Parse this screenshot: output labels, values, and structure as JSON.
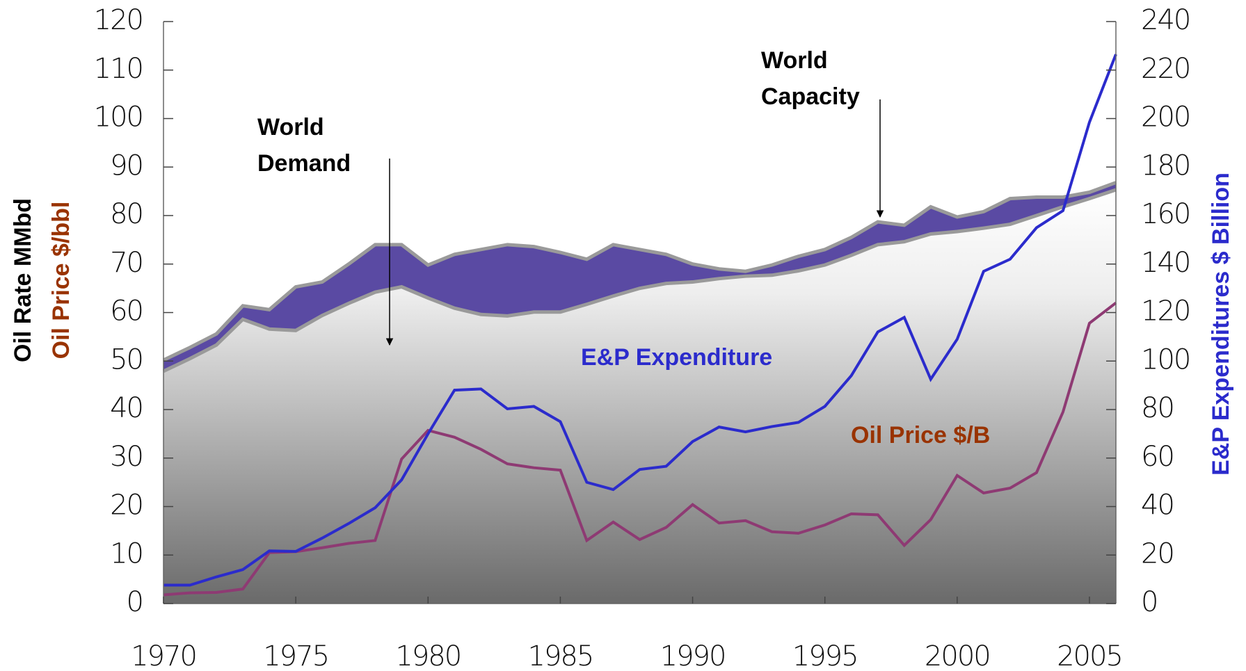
{
  "chart_data": {
    "type": "line",
    "ylabel": "Oil Rate MMbd",
    "ylabel2": "Oil Price $/bbl",
    "y2label": "E&P Expenditures $ Billion",
    "x": [
      1970,
      1971,
      1972,
      1973,
      1974,
      1975,
      1976,
      1977,
      1978,
      1979,
      1980,
      1981,
      1982,
      1983,
      1984,
      1985,
      1986,
      1987,
      1988,
      1989,
      1990,
      1991,
      1992,
      1993,
      1994,
      1995,
      1996,
      1997,
      1998,
      1999,
      2000,
      2001,
      2002,
      2003,
      2004,
      2005,
      2006
    ],
    "xlim": [
      1970,
      2006
    ],
    "xticks": [
      1970,
      1975,
      1980,
      1985,
      1990,
      1995,
      2000,
      2005
    ],
    "ylim": [
      0,
      120
    ],
    "yticks": [
      0,
      10,
      20,
      30,
      40,
      50,
      60,
      70,
      80,
      90,
      100,
      110,
      120
    ],
    "y2lim": [
      0,
      240
    ],
    "y2ticks": [
      0,
      20,
      40,
      60,
      80,
      100,
      120,
      140,
      160,
      180,
      200,
      220,
      240
    ],
    "series": [
      {
        "name": "World Capacity",
        "color": "#5a4aa3",
        "values": [
          50.2,
          52.8,
          55.6,
          61.4,
          60.6,
          65.3,
          66.3,
          70,
          74,
          74,
          69.8,
          72,
          73,
          74,
          73.6,
          72.4,
          71,
          74,
          73,
          72,
          70,
          69,
          68.5,
          69.8,
          71.6,
          73,
          75.5,
          78.7,
          78,
          81.8,
          79.7,
          80.8,
          83.5,
          83.8,
          83.8,
          84.8,
          86.8
        ]
      },
      {
        "name": "World Demand",
        "color": "#9a9a9a",
        "values": [
          47.9,
          50.5,
          53.3,
          58.6,
          56.6,
          56.3,
          59.4,
          61.9,
          64.2,
          65.3,
          63,
          60.9,
          59.6,
          59.3,
          60.1,
          60.1,
          61.7,
          63.4,
          65,
          66,
          66.3,
          67,
          67.5,
          67.7,
          68.6,
          69.8,
          71.8,
          74,
          74.6,
          76.2,
          76.7,
          77.4,
          78.2,
          80,
          81.8,
          83.5,
          85.3
        ]
      },
      {
        "name": "Oil Price $/B",
        "color": "#8e3a73",
        "values": [
          1.8,
          2.2,
          2.3,
          3,
          10.5,
          10.7,
          11.5,
          12.4,
          13,
          29.8,
          35.7,
          34.3,
          31.8,
          28.8,
          28,
          27.5,
          13,
          16.8,
          13.2,
          15.7,
          20.4,
          16.6,
          17.1,
          14.8,
          14.5,
          16.2,
          18.5,
          18.3,
          12,
          17.3,
          26.4,
          22.8,
          23.8,
          27,
          39.5,
          57.8,
          62
        ]
      },
      {
        "name": "E&P Expenditure",
        "color": "#2b2bcc",
        "axis": "y2",
        "values": [
          7.6,
          7.6,
          11,
          14,
          21.7,
          21.5,
          27,
          33,
          39.5,
          51,
          70,
          88,
          88.5,
          80.3,
          81.3,
          75,
          50,
          47,
          55.3,
          56.6,
          66.8,
          72.8,
          70.8,
          73,
          74.7,
          81.3,
          94,
          112,
          118,
          92.5,
          109,
          137,
          142,
          155,
          162,
          198.5,
          226.5
        ]
      }
    ]
  }
}
